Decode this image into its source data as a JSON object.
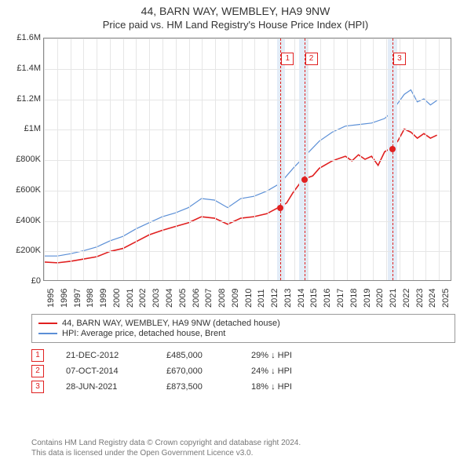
{
  "title": "44, BARN WAY, WEMBLEY, HA9 9NW",
  "subtitle": "Price paid vs. HM Land Registry's House Price Index (HPI)",
  "chart": {
    "type": "line",
    "background_color": "#ffffff",
    "grid_color": "#e6e6e6",
    "border_color": "#888888",
    "y": {
      "min": 0,
      "max": 1600000,
      "step": 200000,
      "labels": [
        "£0",
        "£200K",
        "£400K",
        "£600K",
        "£800K",
        "£1M",
        "£1.2M",
        "£1.4M",
        "£1.6M"
      ]
    },
    "x": {
      "min": 1995,
      "max": 2026,
      "ticks": [
        1995,
        1996,
        1997,
        1998,
        1999,
        2000,
        2001,
        2002,
        2003,
        2004,
        2005,
        2006,
        2007,
        2008,
        2009,
        2010,
        2011,
        2012,
        2013,
        2014,
        2015,
        2016,
        2017,
        2018,
        2019,
        2020,
        2021,
        2022,
        2023,
        2024,
        2025
      ]
    },
    "bands": [
      {
        "from": 2012.7,
        "to": 2013.3,
        "color": "#e3ecf7"
      },
      {
        "from": 2014.4,
        "to": 2015.1,
        "color": "#e3ecf7"
      },
      {
        "from": 2021.1,
        "to": 2021.8,
        "color": "#e3ecf7"
      }
    ],
    "dashed_vlines": [
      {
        "x": 2012.97,
        "color": "#e02020"
      },
      {
        "x": 2014.77,
        "color": "#e02020"
      },
      {
        "x": 2021.49,
        "color": "#e02020"
      }
    ],
    "markers": [
      {
        "n": "1",
        "x": 2012.97,
        "y": 485000,
        "label_x": 2013.5,
        "label_y_top": 18,
        "color": "#e02020"
      },
      {
        "n": "2",
        "x": 2014.77,
        "y": 670000,
        "label_x": 2015.3,
        "label_y_top": 18,
        "color": "#e02020"
      },
      {
        "n": "3",
        "x": 2021.49,
        "y": 873500,
        "label_x": 2022.0,
        "label_y_top": 18,
        "color": "#e02020"
      }
    ],
    "series": [
      {
        "name": "44, BARN WAY, WEMBLEY, HA9 9NW (detached house)",
        "color": "#e02020",
        "width": 1.6,
        "points": [
          [
            1995,
            120000
          ],
          [
            1996,
            115000
          ],
          [
            1997,
            125000
          ],
          [
            1998,
            140000
          ],
          [
            1999,
            155000
          ],
          [
            2000,
            190000
          ],
          [
            2001,
            210000
          ],
          [
            2002,
            255000
          ],
          [
            2003,
            300000
          ],
          [
            2004,
            330000
          ],
          [
            2005,
            355000
          ],
          [
            2006,
            380000
          ],
          [
            2007,
            420000
          ],
          [
            2008,
            410000
          ],
          [
            2009,
            370000
          ],
          [
            2010,
            410000
          ],
          [
            2011,
            420000
          ],
          [
            2012,
            440000
          ],
          [
            2012.97,
            485000
          ],
          [
            2013.5,
            510000
          ],
          [
            2014,
            580000
          ],
          [
            2014.77,
            670000
          ],
          [
            2015,
            675000
          ],
          [
            2015.5,
            690000
          ],
          [
            2016,
            740000
          ],
          [
            2017,
            790000
          ],
          [
            2018,
            820000
          ],
          [
            2018.5,
            790000
          ],
          [
            2019,
            830000
          ],
          [
            2019.5,
            800000
          ],
          [
            2020,
            820000
          ],
          [
            2020.5,
            760000
          ],
          [
            2021,
            850000
          ],
          [
            2021.49,
            873500
          ],
          [
            2022,
            920000
          ],
          [
            2022.5,
            1000000
          ],
          [
            2023,
            980000
          ],
          [
            2023.5,
            940000
          ],
          [
            2024,
            970000
          ],
          [
            2024.5,
            940000
          ],
          [
            2025,
            960000
          ]
        ]
      },
      {
        "name": "HPI: Average price, detached house, Brent",
        "color": "#5b8fd6",
        "width": 1.2,
        "points": [
          [
            1995,
            160000
          ],
          [
            1996,
            160000
          ],
          [
            1997,
            175000
          ],
          [
            1998,
            195000
          ],
          [
            1999,
            220000
          ],
          [
            2000,
            260000
          ],
          [
            2001,
            290000
          ],
          [
            2002,
            340000
          ],
          [
            2003,
            380000
          ],
          [
            2004,
            420000
          ],
          [
            2005,
            445000
          ],
          [
            2006,
            480000
          ],
          [
            2007,
            540000
          ],
          [
            2008,
            530000
          ],
          [
            2009,
            480000
          ],
          [
            2010,
            540000
          ],
          [
            2011,
            555000
          ],
          [
            2012,
            590000
          ],
          [
            2013,
            640000
          ],
          [
            2014,
            740000
          ],
          [
            2015,
            830000
          ],
          [
            2016,
            920000
          ],
          [
            2017,
            980000
          ],
          [
            2018,
            1020000
          ],
          [
            2019,
            1030000
          ],
          [
            2020,
            1040000
          ],
          [
            2021,
            1070000
          ],
          [
            2021.5,
            1110000
          ],
          [
            2022,
            1170000
          ],
          [
            2022.5,
            1230000
          ],
          [
            2023,
            1260000
          ],
          [
            2023.5,
            1180000
          ],
          [
            2024,
            1200000
          ],
          [
            2024.5,
            1160000
          ],
          [
            2025,
            1190000
          ]
        ]
      }
    ]
  },
  "legend": [
    {
      "color": "#e02020",
      "label": "44, BARN WAY, WEMBLEY, HA9 9NW (detached house)"
    },
    {
      "color": "#5b8fd6",
      "label": "HPI: Average price, detached house, Brent"
    }
  ],
  "sales": [
    {
      "n": "1",
      "date": "21-DEC-2012",
      "price": "£485,000",
      "diff": "29% ↓ HPI",
      "color": "#e02020"
    },
    {
      "n": "2",
      "date": "07-OCT-2014",
      "price": "£670,000",
      "diff": "24% ↓ HPI",
      "color": "#e02020"
    },
    {
      "n": "3",
      "date": "28-JUN-2021",
      "price": "£873,500",
      "diff": "18% ↓ HPI",
      "color": "#e02020"
    }
  ],
  "footer": {
    "l1": "Contains HM Land Registry data © Crown copyright and database right 2024.",
    "l2": "This data is licensed under the Open Government Licence v3.0."
  }
}
